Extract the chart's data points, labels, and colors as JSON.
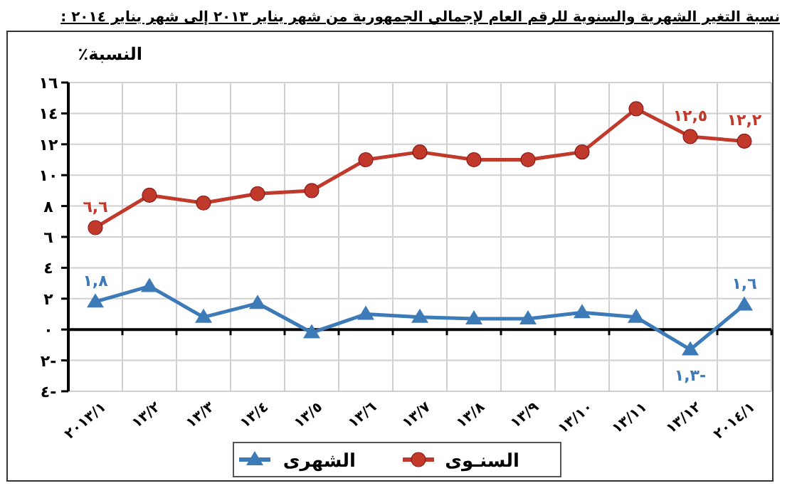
{
  "chart_data": {
    "type": "line",
    "title": "نسبة التغير الشهرية والسنوية للرقم العام لإجمالي الجمهورية من شهر يناير ٢٠١٣ إلى شهر يناير ٢٠١٤ :",
    "ylabel": "النسبة٪",
    "categories": [
      "٢٠١٣/١",
      "١٣/٢",
      "١٣/٣",
      "١٣/٤",
      "١٣/٥",
      "١٣/٦",
      "١٣/٧",
      "١٣/٨",
      "١٣/٩",
      "١٣/١٠",
      "١٣/١١",
      "١٣/١٢",
      "٢٠١٤/١"
    ],
    "series": [
      {
        "name": "السنـوى",
        "color": "#c0392b",
        "marker": "circle",
        "values": [
          6.6,
          8.7,
          8.2,
          8.8,
          9.0,
          11.0,
          11.5,
          11.0,
          11.0,
          11.5,
          14.3,
          12.5,
          12.2
        ],
        "value_labels": [
          "٦,٦",
          null,
          null,
          null,
          null,
          null,
          null,
          null,
          null,
          null,
          null,
          "١٢,٥",
          "١٢,٢"
        ]
      },
      {
        "name": "الشهرى",
        "color": "#3d7ab8",
        "marker": "triangle",
        "values": [
          1.8,
          2.8,
          0.8,
          1.7,
          -0.2,
          1.0,
          0.8,
          0.7,
          0.7,
          1.1,
          0.8,
          -1.3,
          1.6
        ],
        "value_labels": [
          "١,٨",
          null,
          null,
          null,
          null,
          null,
          null,
          null,
          null,
          null,
          null,
          "-١,٣",
          "١,٦"
        ]
      }
    ],
    "ylim": [
      -4,
      16
    ],
    "yticks": [
      {
        "value": -4,
        "label": "٤-"
      },
      {
        "value": -2,
        "label": "٢-"
      },
      {
        "value": 0,
        "label": "٠"
      },
      {
        "value": 2,
        "label": "٢"
      },
      {
        "value": 4,
        "label": "٤"
      },
      {
        "value": 6,
        "label": "٦"
      },
      {
        "value": 8,
        "label": "٨"
      },
      {
        "value": 10,
        "label": "١٠"
      },
      {
        "value": 12,
        "label": "١٢"
      },
      {
        "value": 14,
        "label": "١٤"
      },
      {
        "value": 16,
        "label": "١٦"
      }
    ],
    "grid": true,
    "legend": "bottom"
  }
}
